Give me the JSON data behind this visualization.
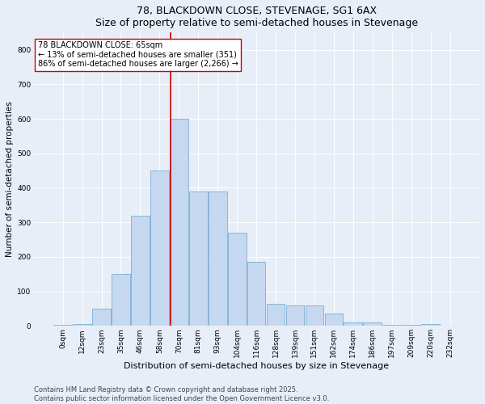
{
  "title": "78, BLACKDOWN CLOSE, STEVENAGE, SG1 6AX",
  "subtitle": "Size of property relative to semi-detached houses in Stevenage",
  "xlabel": "Distribution of semi-detached houses by size in Stevenage",
  "ylabel": "Number of semi-detached properties",
  "bar_labels": [
    "0sqm",
    "12sqm",
    "23sqm",
    "35sqm",
    "46sqm",
    "58sqm",
    "70sqm",
    "81sqm",
    "93sqm",
    "104sqm",
    "116sqm",
    "128sqm",
    "139sqm",
    "151sqm",
    "162sqm",
    "174sqm",
    "186sqm",
    "197sqm",
    "209sqm",
    "220sqm",
    "232sqm"
  ],
  "bar_values": [
    2,
    5,
    50,
    150,
    320,
    450,
    600,
    390,
    390,
    270,
    185,
    65,
    60,
    60,
    35,
    10,
    10,
    3,
    3,
    5,
    0
  ],
  "bar_color": "#c5d8f0",
  "bar_edge_color": "#7bafd4",
  "vline_x": 5.55,
  "vline_color": "#cc0000",
  "annotation_text": "78 BLACKDOWN CLOSE: 65sqm\n← 13% of semi-detached houses are smaller (351)\n86% of semi-detached houses are larger (2,266) →",
  "annotation_box_color": "#ffffff",
  "annotation_box_edge": "#cc0000",
  "ylim": [
    0,
    850
  ],
  "yticks": [
    0,
    100,
    200,
    300,
    400,
    500,
    600,
    700,
    800
  ],
  "footer_text": "Contains HM Land Registry data © Crown copyright and database right 2025.\nContains public sector information licensed under the Open Government Licence v3.0.",
  "background_color": "#e8eef8",
  "plot_bg_color": "#e8eef8",
  "title_fontsize": 9,
  "subtitle_fontsize": 8,
  "xlabel_fontsize": 8,
  "ylabel_fontsize": 7.5,
  "tick_fontsize": 6.5,
  "annotation_fontsize": 7,
  "footer_fontsize": 6
}
